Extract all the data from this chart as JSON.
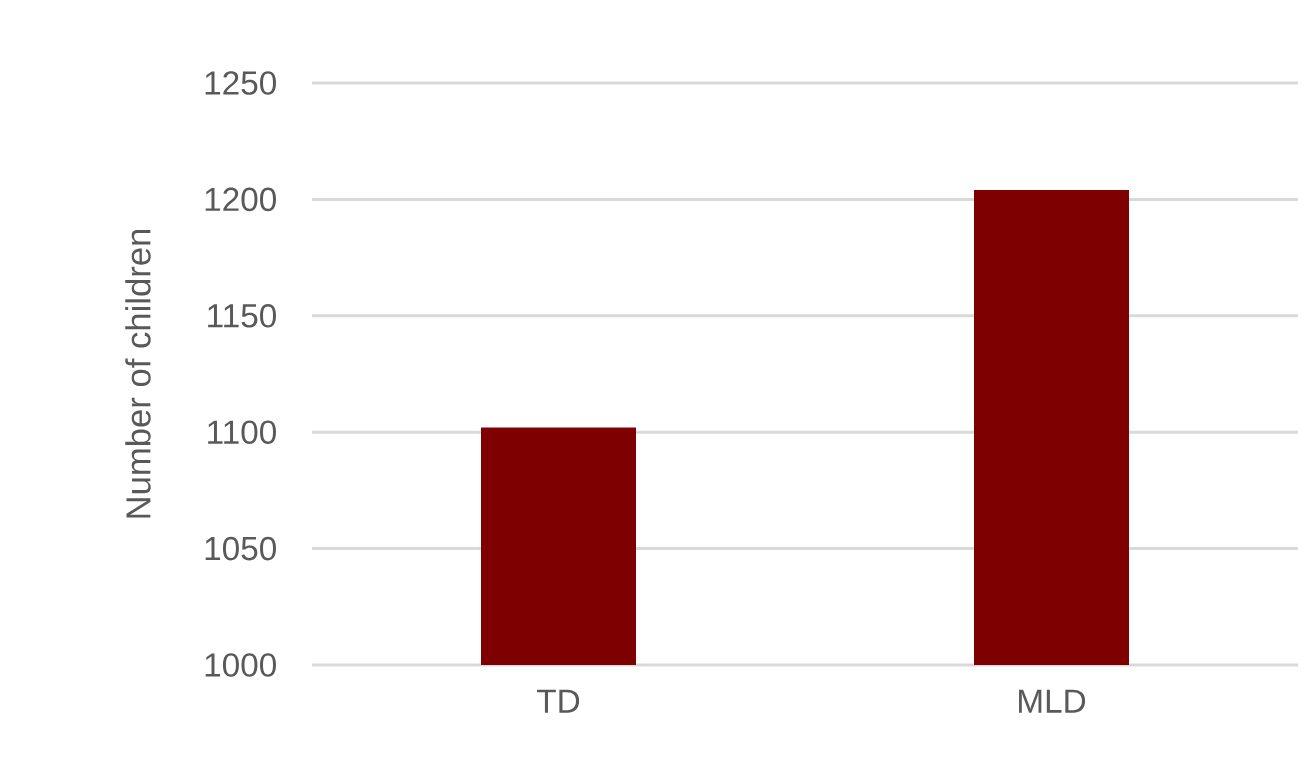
{
  "chart_data": {
    "type": "bar",
    "ylabel": "Number of children",
    "categories": [
      "TD",
      "MLD"
    ],
    "values": [
      1102,
      1204
    ],
    "color": "#7f0000",
    "ylim": [
      1000,
      1250
    ],
    "yticks": [
      1000,
      1050,
      1100,
      1150,
      1200,
      1250
    ],
    "grid": "y"
  }
}
